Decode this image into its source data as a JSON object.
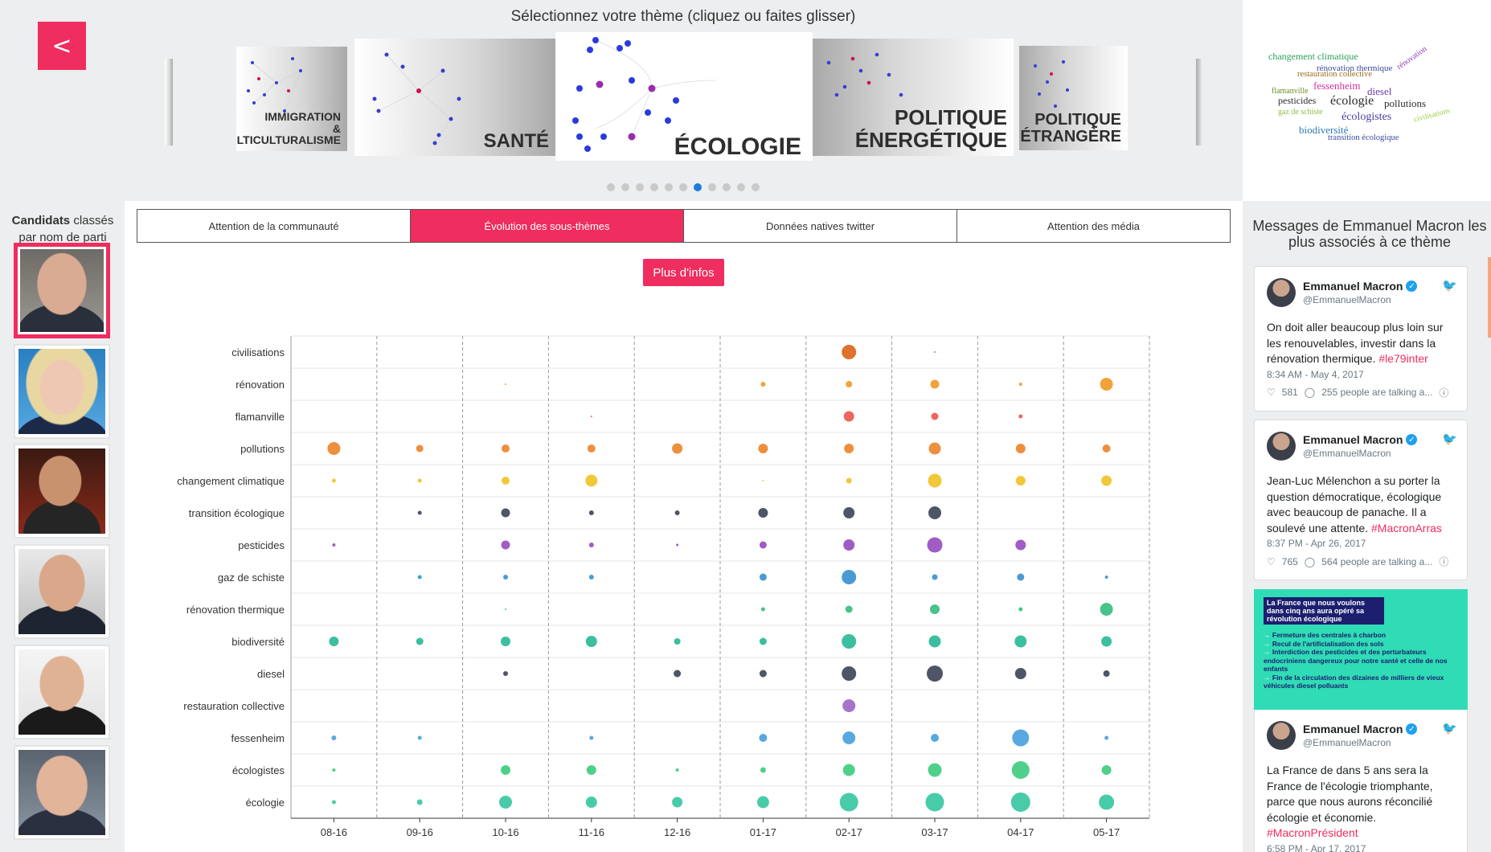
{
  "carousel": {
    "title": "Sélectionnez votre thème (cliquez ou faites glisser)",
    "back_label": "<",
    "slides": [
      {
        "label": "IMMIGRATION\n& MULTICULTURALISME"
      },
      {
        "label": "SANTÉ"
      },
      {
        "label": "ÉCOLOGIE"
      },
      {
        "label": "POLITIQUE\nÉNERGÉTIQUE"
      },
      {
        "label": "POLITIQUE\nÉTRANGÈRE"
      }
    ],
    "dot_count": 11,
    "active_dot": 6
  },
  "wordcloud": [
    {
      "w": "changement climatique",
      "c": "#2ca05a"
    },
    {
      "w": "rénovation thermique",
      "c": "#3b4a9c"
    },
    {
      "w": "restauration collective",
      "c": "#9a6a1c"
    },
    {
      "w": "rénovation",
      "c": "#8a3fb5"
    },
    {
      "w": "fessenheim",
      "c": "#d62ea0"
    },
    {
      "w": "diesel",
      "c": "#6b35a8"
    },
    {
      "w": "flamanville",
      "c": "#6b8e23"
    },
    {
      "w": "pesticides",
      "c": "#2c2c2c"
    },
    {
      "w": "écologie",
      "c": "#2c2c2c"
    },
    {
      "w": "pollutions",
      "c": "#2c2c2c"
    },
    {
      "w": "gaz de schiste",
      "c": "#8fbc3f"
    },
    {
      "w": "écologistes",
      "c": "#4b3ca0"
    },
    {
      "w": "civilisations",
      "c": "#9acd32"
    },
    {
      "w": "biodiversité",
      "c": "#2a7ab0"
    },
    {
      "w": "transition écologique",
      "c": "#3b4aa0"
    }
  ],
  "candidates": {
    "title_bold": "Candidats",
    "title_rest": " classés par nom de parti"
  },
  "tabs": [
    {
      "label": "Attention de la communauté",
      "active": false
    },
    {
      "label": "Évolution des sous-thèmes",
      "active": true
    },
    {
      "label": "Données natives twitter",
      "active": false
    },
    {
      "label": "Attention des média",
      "active": false
    }
  ],
  "more_info_label": "Plus d'infos",
  "chart_data": {
    "type": "scatter",
    "x": [
      "08-16",
      "09-16",
      "10-16",
      "11-16",
      "12-16",
      "01-17",
      "02-17",
      "03-17",
      "04-17",
      "05-17"
    ],
    "categories": [
      "civilisations",
      "rénovation",
      "flamanville",
      "pollutions",
      "changement climatique",
      "transition écologique",
      "pesticides",
      "gaz de schiste",
      "rénovation thermique",
      "biodiversité",
      "diesel",
      "restauration collective",
      "fessenheim",
      "écologistes",
      "écologie"
    ],
    "colors": [
      "#e0722c",
      "#f0a33a",
      "#ee6460",
      "#ee8f3e",
      "#f2c83a",
      "#4d5566",
      "#a05cc4",
      "#4a9bd4",
      "#48c389",
      "#3cbf9e",
      "#4d5566",
      "#a674c8",
      "#5aa8e0",
      "#4fd08a",
      "#48cba8"
    ],
    "values": [
      [
        0,
        0,
        0,
        0,
        0,
        0,
        18,
        2,
        0,
        0
      ],
      [
        0,
        0,
        2,
        0,
        0,
        6,
        8,
        11,
        4,
        16
      ],
      [
        0,
        0,
        0,
        2,
        0,
        0,
        13,
        9,
        5,
        0
      ],
      [
        16,
        9,
        10,
        10,
        13,
        12,
        12,
        15,
        12,
        10
      ],
      [
        5,
        5,
        10,
        15,
        0,
        2,
        7,
        17,
        12,
        13
      ],
      [
        0,
        5,
        11,
        6,
        6,
        12,
        14,
        16,
        0,
        0
      ],
      [
        4,
        0,
        11,
        6,
        3,
        9,
        14,
        19,
        13,
        0
      ],
      [
        0,
        5,
        6,
        6,
        0,
        9,
        18,
        7,
        9,
        4
      ],
      [
        0,
        0,
        2,
        0,
        0,
        5,
        9,
        12,
        5,
        16
      ],
      [
        12,
        9,
        12,
        14,
        8,
        9,
        18,
        15,
        15,
        13
      ],
      [
        0,
        0,
        6,
        0,
        9,
        9,
        18,
        20,
        14,
        8
      ],
      [
        0,
        0,
        0,
        0,
        0,
        0,
        16,
        0,
        0,
        0
      ],
      [
        6,
        5,
        0,
        5,
        0,
        10,
        16,
        10,
        21,
        5
      ],
      [
        4,
        0,
        12,
        12,
        4,
        7,
        15,
        17,
        22,
        12
      ],
      [
        5,
        7,
        16,
        14,
        13,
        15,
        23,
        23,
        24,
        19
      ]
    ]
  },
  "right": {
    "title": "Messages de Emmanuel Macron les plus associés à ce thème",
    "tweets": [
      {
        "name": "Emmanuel Macron",
        "handle": "@EmmanuelMacron",
        "text": "On doit aller beaucoup plus loin sur les renouvelables, investir dans la rénovation thermique. ",
        "tag": "#le79inter",
        "date": "8:34 AM - May 4, 2017",
        "likes": "581",
        "talk": "255 people are talking a..."
      },
      {
        "name": "Emmanuel Macron",
        "handle": "@EmmanuelMacron",
        "text": "Jean-Luc Mélenchon a su porter la question démocratique, écologique avec beaucoup de panache. Il a soulevé une attente. ",
        "tag": "#MacronArras",
        "date": "8:37 PM - Apr 26, 2017",
        "likes": "765",
        "talk": "564 people are talking a..."
      },
      {
        "name": "Emmanuel Macron",
        "handle": "@EmmanuelMacron",
        "text": "La France de dans 5 ans sera la France de l'écologie triomphante, parce que nous aurons réconcilié écologie et économie. ",
        "tag": "#MacronPrésident",
        "date": "6:58 PM - Apr 17, 2017"
      }
    ],
    "media": {
      "head": "La France que nous voulons dans cinq ans aura opéré sa révolution écologique",
      "items": [
        "Fermeture des centrales à charbon",
        "Recul de l'artificialisation des sols",
        "Interdiction des pesticides et des perturbateurs endocriniens dangereux pour notre santé et celle de nos enfants",
        "Fin de la circulation des dizaines de milliers de vieux véhicules diesel polluants"
      ]
    }
  }
}
